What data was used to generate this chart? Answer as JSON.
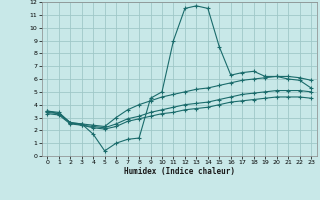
{
  "xlabel": "Humidex (Indice chaleur)",
  "xlim": [
    -0.5,
    23.5
  ],
  "ylim": [
    0,
    12
  ],
  "xticks": [
    0,
    1,
    2,
    3,
    4,
    5,
    6,
    7,
    8,
    9,
    10,
    11,
    12,
    13,
    14,
    15,
    16,
    17,
    18,
    19,
    20,
    21,
    22,
    23
  ],
  "yticks": [
    0,
    1,
    2,
    3,
    4,
    5,
    6,
    7,
    8,
    9,
    10,
    11,
    12
  ],
  "bg_color": "#c8e8e8",
  "grid_color": "#a0c8c8",
  "line_color": "#1a6b6b",
  "curve1_x": [
    0,
    1,
    2,
    3,
    4,
    5,
    6,
    7,
    8,
    9,
    10,
    11,
    12,
    13,
    14,
    15,
    16,
    17,
    18,
    19,
    20,
    21,
    22,
    23
  ],
  "curve1_y": [
    3.5,
    3.3,
    2.6,
    2.5,
    1.7,
    0.4,
    1.0,
    1.3,
    1.4,
    4.5,
    5.0,
    9.0,
    11.5,
    11.7,
    11.5,
    8.5,
    6.3,
    6.5,
    6.6,
    6.2,
    6.2,
    6.0,
    5.9,
    5.3
  ],
  "curve2_x": [
    0,
    1,
    2,
    3,
    4,
    5,
    6,
    7,
    8,
    9,
    10,
    11,
    12,
    13,
    14,
    15,
    16,
    17,
    18,
    19,
    20,
    21,
    22,
    23
  ],
  "curve2_y": [
    3.5,
    3.4,
    2.6,
    2.5,
    2.4,
    2.3,
    3.0,
    3.6,
    4.0,
    4.3,
    4.6,
    4.8,
    5.0,
    5.2,
    5.3,
    5.5,
    5.7,
    5.9,
    6.0,
    6.1,
    6.2,
    6.2,
    6.1,
    5.9
  ],
  "curve3_x": [
    0,
    1,
    2,
    3,
    4,
    5,
    6,
    7,
    8,
    9,
    10,
    11,
    12,
    13,
    14,
    15,
    16,
    17,
    18,
    19,
    20,
    21,
    22,
    23
  ],
  "curve3_y": [
    3.4,
    3.3,
    2.6,
    2.4,
    2.3,
    2.2,
    2.5,
    2.9,
    3.1,
    3.4,
    3.6,
    3.8,
    4.0,
    4.1,
    4.2,
    4.4,
    4.6,
    4.8,
    4.9,
    5.0,
    5.1,
    5.1,
    5.1,
    5.0
  ],
  "curve4_x": [
    0,
    1,
    2,
    3,
    4,
    5,
    6,
    7,
    8,
    9,
    10,
    11,
    12,
    13,
    14,
    15,
    16,
    17,
    18,
    19,
    20,
    21,
    22,
    23
  ],
  "curve4_y": [
    3.3,
    3.2,
    2.5,
    2.4,
    2.2,
    2.1,
    2.3,
    2.7,
    2.9,
    3.1,
    3.3,
    3.4,
    3.6,
    3.7,
    3.8,
    4.0,
    4.2,
    4.3,
    4.4,
    4.5,
    4.6,
    4.6,
    4.6,
    4.5
  ]
}
